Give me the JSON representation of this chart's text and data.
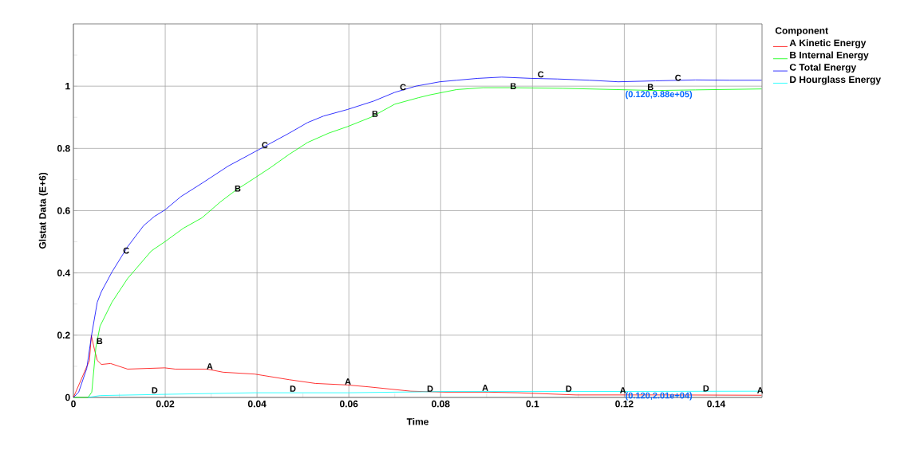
{
  "chart_data": {
    "type": "line",
    "xlabel": "Time",
    "ylabel": "Glstat Data (E+6)",
    "legend_title": "Component",
    "xlim": [
      0,
      0.15
    ],
    "ylim": [
      0,
      1.2
    ],
    "xticks": [
      0,
      {
        "value": 0.01,
        "label": null
      },
      0.02,
      {
        "value": 0.03,
        "label": null
      },
      0.04,
      {
        "value": 0.05,
        "label": null
      },
      0.06,
      {
        "value": 0.07,
        "label": null
      },
      0.08,
      {
        "value": 0.09,
        "label": null
      },
      0.1,
      {
        "value": 0.11,
        "label": null
      },
      0.12,
      {
        "value": 0.13,
        "label": null
      },
      0.14
    ],
    "yticks": [
      0,
      {
        "value": 0.1,
        "label": null
      },
      0.2,
      {
        "value": 0.3,
        "label": null
      },
      0.4,
      {
        "value": 0.5,
        "label": null
      },
      0.6,
      {
        "value": 0.7,
        "label": null
      },
      0.8,
      {
        "value": 0.9,
        "label": null
      },
      1,
      {
        "value": 1.1,
        "label": null
      }
    ],
    "grid": true,
    "legend": "top right",
    "marker": "none",
    "line_style": "solid",
    "series": [
      {
        "name": "A Kinetic Energy",
        "color": "#ff0000",
        "x": [
          0,
          0.002,
          0.0035,
          0.0039,
          0.0046,
          0.0052,
          0.0061,
          0.0081,
          0.0118,
          0.0199,
          0.0222,
          0.0291,
          0.0326,
          0.0395,
          0.047,
          0.0527,
          0.0597,
          0.0643,
          0.0735,
          0.081,
          0.0904,
          0.0968,
          0.1095,
          0.1297,
          0.1499
        ],
        "values": [
          0,
          null,
          0.119,
          0.199,
          0.153,
          0.119,
          0.106,
          0.109,
          0.091,
          0.095,
          0.091,
          0.091,
          0.081,
          0.075,
          0.057,
          0.045,
          0.04,
          0.034,
          0.02,
          0.017,
          0.017,
          0.015,
          0.008,
          0.008,
          0.007
        ]
      },
      {
        "name": "B Internal Energy",
        "color": "#00ff00",
        "x": [
          0,
          0.0032,
          0.004,
          0.0049,
          0.0058,
          0.0084,
          0.0118,
          0.017,
          0.02,
          0.0239,
          0.028,
          0.032,
          0.0354,
          0.0395,
          0.043,
          0.047,
          0.051,
          0.0556,
          0.0597,
          0.0648,
          0.07,
          0.0752,
          0.0777,
          0.0835,
          0.0892,
          0.095,
          0.1066,
          0.1182,
          0.1268,
          0.1355,
          0.1499
        ],
        "values": [
          0,
          0,
          0.017,
          0.161,
          0.229,
          0.306,
          0.382,
          0.471,
          0.501,
          0.543,
          0.577,
          0.628,
          0.666,
          0.705,
          0.739,
          0.781,
          0.819,
          0.849,
          0.87,
          0.9,
          0.942,
          0.963,
          0.972,
          0.989,
          0.995,
          0.995,
          0.993,
          0.989,
          0.986,
          0.988,
          0.991
        ]
      },
      {
        "name": "C Total Energy",
        "color": "#0000ff",
        "x": [
          0,
          0.00115,
          0.0029,
          0.004,
          0.0052,
          0.0061,
          0.0084,
          0.0118,
          0.0153,
          0.0176,
          0.02,
          0.0234,
          0.028,
          0.0337,
          0.0395,
          0.043,
          0.047,
          0.051,
          0.0545,
          0.0597,
          0.0654,
          0.07,
          0.0746,
          0.0798,
          0.0835,
          0.0881,
          0.0933,
          0.0997,
          0.1054,
          0.1124,
          0.1187,
          0.1268,
          0.1355,
          0.143,
          0.1499
        ],
        "values": [
          0,
          0.017,
          0.093,
          0.204,
          0.306,
          0.34,
          0.403,
          0.484,
          0.552,
          0.581,
          0.603,
          0.645,
          0.688,
          0.743,
          0.789,
          0.817,
          0.849,
          0.883,
          0.904,
          0.925,
          0.952,
          0.98,
          1.0,
          1.014,
          1.019,
          1.025,
          1.029,
          1.025,
          1.023,
          1.019,
          1.014,
          1.017,
          1.02,
          1.019,
          1.019
        ]
      },
      {
        "name": "D Hourglass Energy",
        "color": "#00ffff",
        "x": [
          0.0032,
          0.0058,
          0.02,
          0.0395,
          0.0597,
          0.081,
          0.1095,
          0.1499
        ],
        "values": [
          0,
          0.006,
          0.01,
          0.015,
          0.015,
          0.019,
          0.019,
          0.02
        ]
      }
    ],
    "annotations": [
      {
        "text": "A",
        "x": 0.0297,
        "y": 0.1
      },
      {
        "text": "A",
        "x": 0.0598,
        "y": 0.051
      },
      {
        "text": "A",
        "x": 0.0897,
        "y": 0.031
      },
      {
        "text": "A",
        "x": 0.1197,
        "y": 0.023
      },
      {
        "text": "A",
        "x": 0.1496,
        "y": 0.023
      },
      {
        "text": "B",
        "x": 0.0057,
        "y": 0.181
      },
      {
        "text": "B",
        "x": 0.0358,
        "y": 0.671
      },
      {
        "text": "B",
        "x": 0.0657,
        "y": 0.911
      },
      {
        "text": "B",
        "x": 0.0958,
        "y": 1.0
      },
      {
        "text": "B",
        "x": 0.1257,
        "y": 0.997
      },
      {
        "text": "C",
        "x": 0.0115,
        "y": 0.472
      },
      {
        "text": "C",
        "x": 0.0417,
        "y": 0.811
      },
      {
        "text": "C",
        "x": 0.0718,
        "y": 0.997
      },
      {
        "text": "C",
        "x": 0.1018,
        "y": 1.038
      },
      {
        "text": "C",
        "x": 0.1317,
        "y": 1.027
      },
      {
        "text": "D",
        "x": 0.0177,
        "y": 0.023
      },
      {
        "text": "D",
        "x": 0.0478,
        "y": 0.028
      },
      {
        "text": "D",
        "x": 0.0777,
        "y": 0.028
      },
      {
        "text": "D",
        "x": 0.1079,
        "y": 0.028
      },
      {
        "text": "D",
        "x": 0.1378,
        "y": 0.029
      },
      {
        "text": "(0.120,9.88e+05)",
        "x": 0.12,
        "y": 0.988
      },
      {
        "text": "(0.120,2.01e+04)",
        "x": 0.12,
        "y": 0.0201
      }
    ]
  }
}
